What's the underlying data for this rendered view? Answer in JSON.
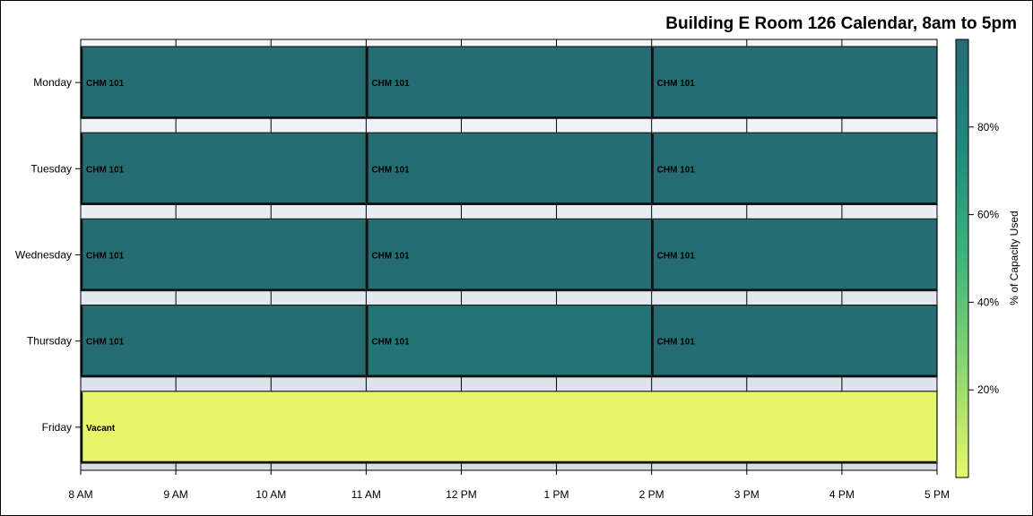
{
  "chart_data": {
    "type": "timeline-heatmap",
    "title": "Building E Room 126 Calendar, 8am to 5pm",
    "xlabel": "",
    "ylabel": "",
    "x_ticks": [
      "8 AM",
      "9 AM",
      "10 AM",
      "11 AM",
      "12 PM",
      "1 PM",
      "2 PM",
      "3 PM",
      "4 PM",
      "5 PM"
    ],
    "x_range_hours": [
      8,
      17
    ],
    "days": [
      "Monday",
      "Tuesday",
      "Wednesday",
      "Thursday",
      "Friday"
    ],
    "bookings": [
      {
        "day": "Monday",
        "label": "CHM 101",
        "start": 8,
        "end": 11,
        "capacity_pct": 98
      },
      {
        "day": "Monday",
        "label": "CHM 101",
        "start": 11,
        "end": 14,
        "capacity_pct": 98
      },
      {
        "day": "Monday",
        "label": "CHM 101",
        "start": 14,
        "end": 17,
        "capacity_pct": 98
      },
      {
        "day": "Tuesday",
        "label": "CHM 101",
        "start": 8,
        "end": 11,
        "capacity_pct": 98
      },
      {
        "day": "Tuesday",
        "label": "CHM 101",
        "start": 11,
        "end": 14,
        "capacity_pct": 98
      },
      {
        "day": "Tuesday",
        "label": "CHM 101",
        "start": 14,
        "end": 17,
        "capacity_pct": 98
      },
      {
        "day": "Wednesday",
        "label": "CHM 101",
        "start": 8,
        "end": 11,
        "capacity_pct": 98
      },
      {
        "day": "Wednesday",
        "label": "CHM 101",
        "start": 11,
        "end": 14,
        "capacity_pct": 98
      },
      {
        "day": "Wednesday",
        "label": "CHM 101",
        "start": 14,
        "end": 17,
        "capacity_pct": 98
      },
      {
        "day": "Thursday",
        "label": "CHM 101",
        "start": 8,
        "end": 11,
        "capacity_pct": 98
      },
      {
        "day": "Thursday",
        "label": "CHM 101",
        "start": 11,
        "end": 14,
        "capacity_pct": 92
      },
      {
        "day": "Thursday",
        "label": "CHM 101",
        "start": 14,
        "end": 17,
        "capacity_pct": 98
      },
      {
        "day": "Friday",
        "label": "Vacant",
        "start": 8,
        "end": 17,
        "capacity_pct": 0
      }
    ],
    "colorbar": {
      "label": "% of Capacity Used",
      "ticks": [
        "20%",
        "40%",
        "60%",
        "80%"
      ],
      "tick_values": [
        20,
        40,
        60,
        80
      ],
      "range": [
        0,
        100
      ],
      "colors": [
        "#e8f76a",
        "#8cd672",
        "#3fb47b",
        "#1f8a7d",
        "#266a72"
      ]
    },
    "grid": true
  }
}
